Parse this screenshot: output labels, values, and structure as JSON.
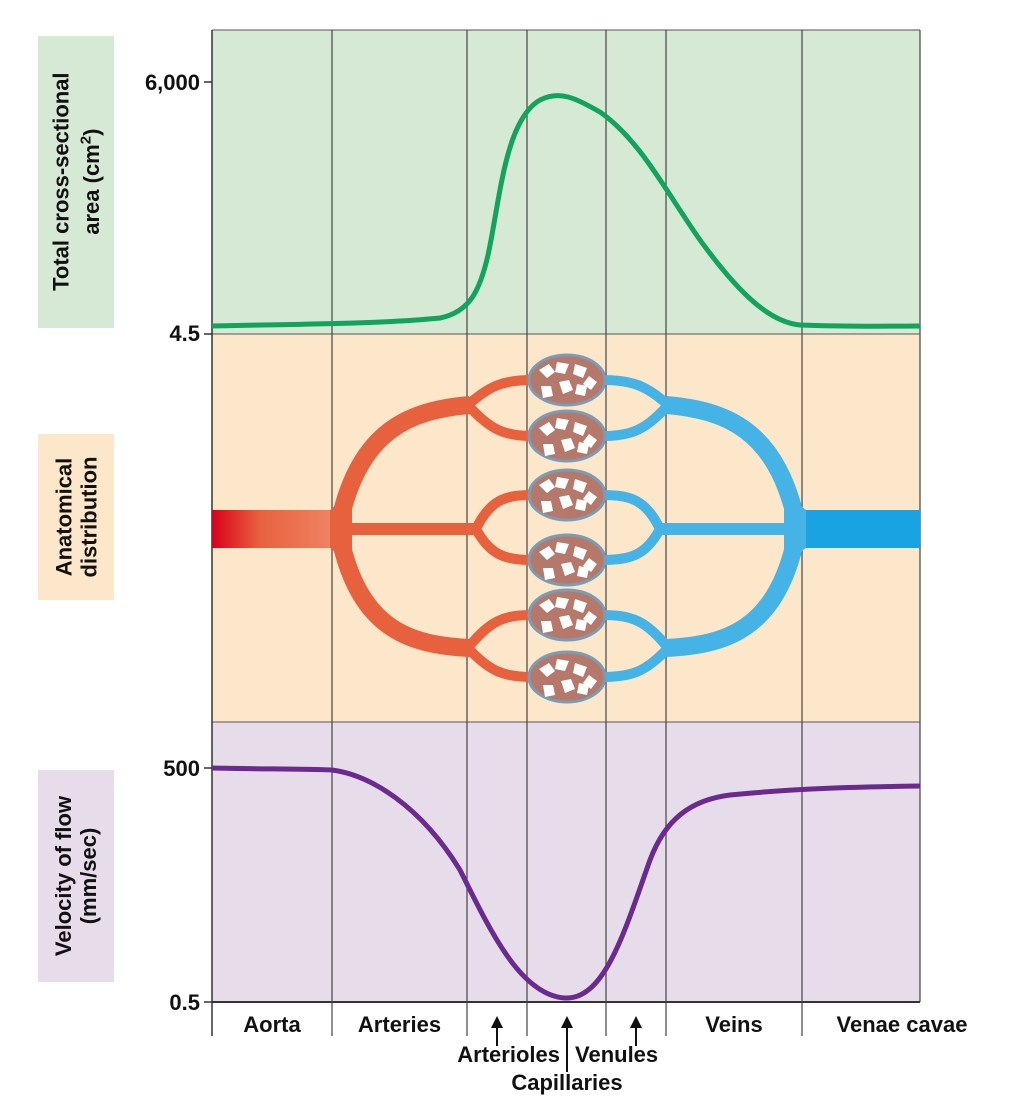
{
  "colors": {
    "area_bg": "#d5e9d4",
    "anatomy_bg": "#fde7cb",
    "velocity_bg": "#e6dcea",
    "area_curve": "#12a35c",
    "velocity_curve": "#6a2a8e",
    "arterial": "#e8613f",
    "arterial_dark": "#d8001b",
    "venous": "#46b3e6",
    "divider": "#333333"
  },
  "panels": {
    "area": {
      "label_line1": "Total cross-sectional",
      "label_line2_main": "area (cm",
      "label_line2_sup": "2",
      "label_line2_end": ")"
    },
    "anatomy": {
      "label_line1": "Anatomical",
      "label_line2": "distribution"
    },
    "velocity": {
      "label_line1": "Velocity of flow",
      "label_line2": "(mm/sec)"
    }
  },
  "area_axis": {
    "max_label": "6,000",
    "min_label": "4.5"
  },
  "velocity_axis": {
    "max_label": "500",
    "min_label": "0.5"
  },
  "segments": {
    "aorta": "Aorta",
    "arteries": "Arteries",
    "arterioles": "Arterioles",
    "capillaries": "Capillaries",
    "venules": "Venules",
    "veins": "Veins",
    "venae_cavae": "Venae cavae"
  },
  "icons": {
    "arrows": "up-arrow-icon",
    "capillary_beds": "capillary-bed-icon"
  }
}
